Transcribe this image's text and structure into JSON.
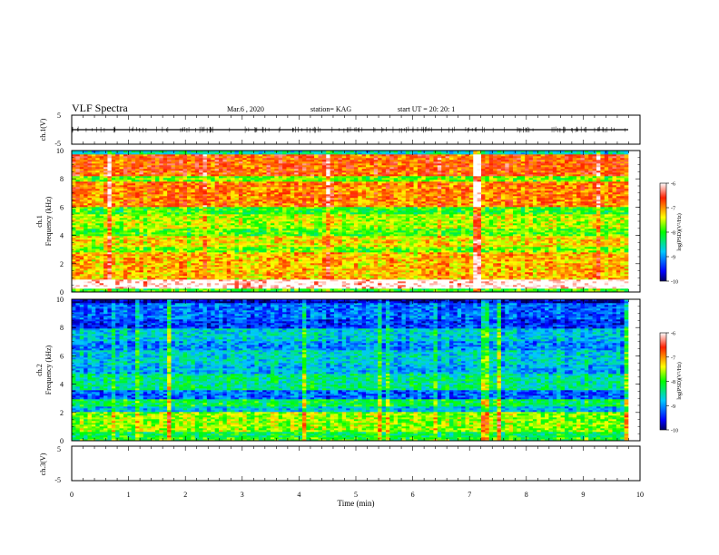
{
  "header": {
    "title": "VLF Spectra",
    "date": "Mar.6 , 2020",
    "station": "station= KAG",
    "start": "start UT = 20: 20: 1"
  },
  "chart_data": [
    {
      "type": "line",
      "name": "ch1-waveform",
      "ylabel": "ch.1(V)",
      "ylim": [
        -5,
        5
      ],
      "yticks": [
        "5",
        "-5"
      ],
      "xlim": [
        0,
        10
      ],
      "series": [
        {
          "values": [
            0,
            0
          ]
        }
      ]
    },
    {
      "type": "heatmap",
      "name": "ch1-spectrogram",
      "ylabel_line1": "ch.1",
      "ylabel_line2": "Frequency (kHz)",
      "ylim": [
        0,
        10
      ],
      "yticks": [
        "0",
        "2",
        "4",
        "6",
        "8",
        "10"
      ],
      "xlim": [
        0,
        10
      ],
      "colorbar": {
        "label": "log(PSD)(V²/Hz)",
        "range": [
          -10,
          -6
        ],
        "ticks": [
          "-6",
          "-7",
          "-8",
          "-9",
          "-10"
        ]
      }
    },
    {
      "type": "heatmap",
      "name": "ch2-spectrogram",
      "ylabel_line1": "ch.2",
      "ylabel_line2": "Frequency (kHz)",
      "ylim": [
        0,
        10
      ],
      "yticks": [
        "0",
        "2",
        "4",
        "6",
        "8",
        "10"
      ],
      "xlim": [
        0,
        10
      ],
      "colorbar": {
        "label": "log(PSD)(V²/Hz)",
        "range": [
          -10,
          -6
        ],
        "ticks": [
          "-6",
          "-7",
          "-8",
          "-9",
          "-10"
        ]
      }
    },
    {
      "type": "line",
      "name": "ch3-waveform",
      "ylabel": "ch.3(V)",
      "ylim": [
        -5,
        5
      ],
      "yticks": [
        "5",
        "-5"
      ],
      "xlim": [
        0,
        10
      ],
      "xlabel": "Time (min)",
      "xticks": [
        "0",
        "1",
        "2",
        "3",
        "4",
        "5",
        "6",
        "7",
        "8",
        "9",
        "10"
      ],
      "series": []
    }
  ]
}
